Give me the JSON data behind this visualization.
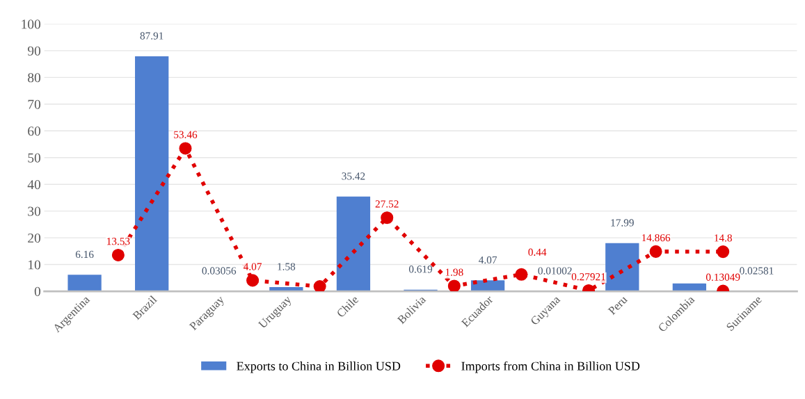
{
  "chart_data": {
    "type": "bar",
    "categories": [
      "Argentina",
      null,
      "Brazil",
      null,
      "Paraguay",
      null,
      "Uruguay",
      null,
      "Chile",
      null,
      "Bolivia",
      null,
      "Ecuador",
      null,
      "Guyana",
      null,
      "Peru",
      null,
      "Colombia",
      null,
      "Suriname"
    ],
    "series": [
      {
        "name": "Exports to China in Billion USD",
        "color": "#4f7fd0",
        "values": [
          6.16,
          null,
          87.91,
          null,
          0.03056,
          null,
          1.58,
          null,
          35.42,
          null,
          0.619,
          null,
          4.07,
          null,
          0.01002,
          null,
          17.99,
          null,
          2.9,
          null,
          0.02581
        ],
        "value_labels": [
          "6.16",
          null,
          "87.91",
          null,
          "0.03056",
          null,
          "1.58",
          null,
          "35.42",
          null,
          "0.619",
          null,
          "4.07",
          null,
          "0.01002",
          null,
          "17.99",
          null,
          null,
          null,
          "0.02581"
        ]
      },
      {
        "name": "Imports from China in Billion USD",
        "type": "line",
        "color": "#e00000",
        "values": [
          null,
          13.53,
          null,
          53.46,
          null,
          4.07,
          null,
          1.8,
          null,
          27.52,
          null,
          1.98,
          null,
          6.3,
          null,
          0.27921,
          null,
          14.866,
          null,
          14.8,
          null
        ],
        "value_labels": [
          null,
          "13.53",
          null,
          "53.46",
          null,
          "4.07",
          null,
          null,
          null,
          "27.52",
          null,
          "1.98",
          null,
          null,
          null,
          "0.27921",
          null,
          "14.866",
          null,
          "14.8",
          null
        ],
        "marker": "circle",
        "line_style": "dotted"
      },
      {
        "type": "line",
        "color": "#e00000",
        "values": [
          null,
          null,
          null,
          null,
          null,
          null,
          null,
          null,
          null,
          null,
          null,
          null,
          null,
          null,
          null,
          null,
          null,
          null,
          null,
          0.13049,
          null
        ],
        "value_labels": [
          null,
          null,
          null,
          null,
          null,
          null,
          null,
          null,
          null,
          null,
          null,
          null,
          null,
          null,
          null,
          null,
          null,
          null,
          null,
          "0.13049",
          null
        ],
        "marker": "circle",
        "line_style": "dotted"
      }
    ],
    "annotations": [
      "0.44"
    ],
    "ylim": [
      0,
      100
    ],
    "yticks": [
      0,
      10,
      20,
      30,
      40,
      50,
      60,
      70,
      80,
      90,
      100
    ],
    "grid": "y",
    "legend": "bottom"
  }
}
